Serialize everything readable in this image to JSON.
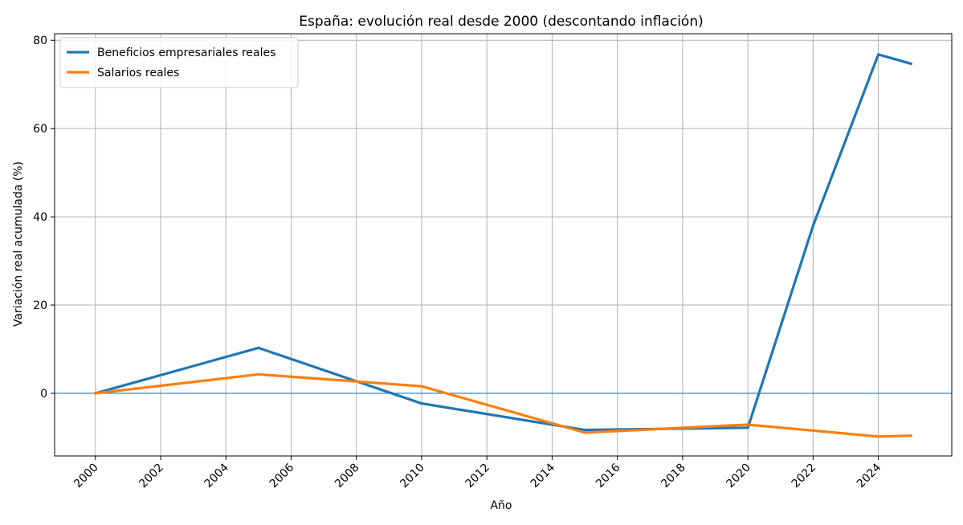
{
  "chart_data": {
    "type": "line",
    "title": "España: evolución real desde 2000 (descontando inflación)",
    "xlabel": "Año",
    "ylabel": "Variación real acumulada (%)",
    "xlim": [
      1998.75,
      2026.25
    ],
    "ylim": [
      -14.2,
      81.5
    ],
    "xticks": [
      2000,
      2002,
      2004,
      2006,
      2008,
      2010,
      2012,
      2014,
      2016,
      2018,
      2020,
      2022,
      2024
    ],
    "yticks": [
      0,
      20,
      40,
      60,
      80
    ],
    "grid": true,
    "legend_position": "upper-left",
    "zero_line": {
      "y": 0,
      "color": "#1f77b4"
    },
    "series": [
      {
        "name": "Beneficios empresariales reales",
        "color": "#1f77b4",
        "x": [
          2000,
          2005,
          2010,
          2015,
          2020,
          2022,
          2024,
          2025
        ],
        "y": [
          0,
          10.3,
          -2.3,
          -8.3,
          -7.8,
          38,
          76.8,
          74.7
        ]
      },
      {
        "name": "Salarios reales",
        "color": "#ff7f0e",
        "x": [
          2000,
          2005,
          2010,
          2015,
          2020,
          2024,
          2025
        ],
        "y": [
          0,
          4.3,
          1.6,
          -8.9,
          -7.1,
          -9.8,
          -9.6
        ]
      }
    ]
  }
}
